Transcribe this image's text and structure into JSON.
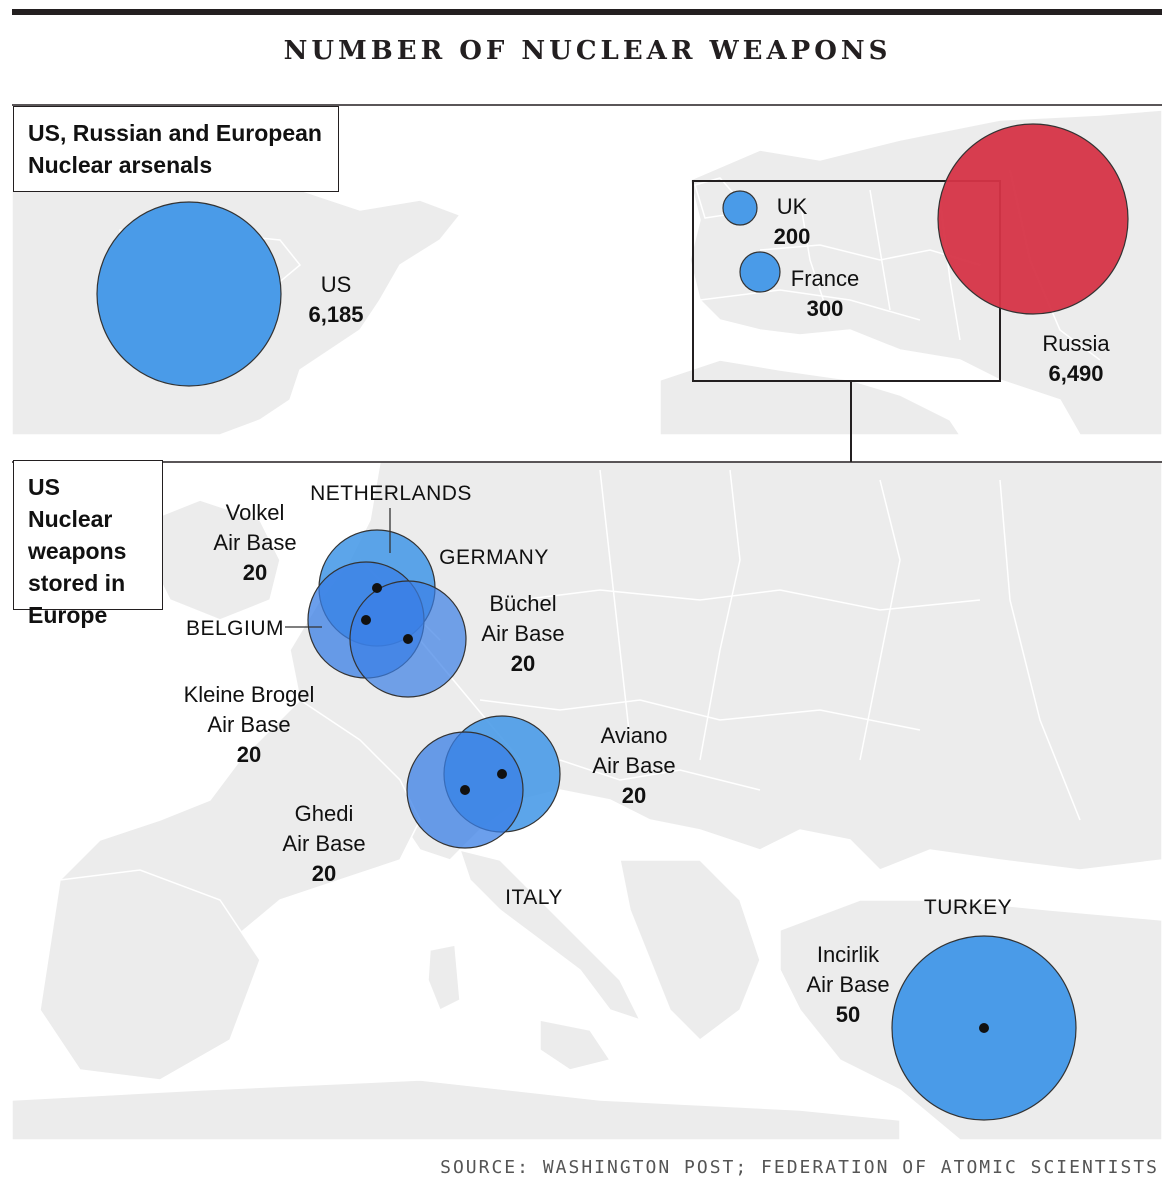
{
  "title": "NUMBER OF NUCLEAR WEAPONS",
  "panels": {
    "arsenals_label": "US, Russian and European\nNuclear arsenals",
    "europe_label": "US Nuclear\nweapons\nstored in\nEurope"
  },
  "arsenals": [
    {
      "name": "US",
      "value": "6,185",
      "color": "#4a9be8"
    },
    {
      "name": "UK",
      "value": "200",
      "color": "#4a9be8"
    },
    {
      "name": "France",
      "value": "300",
      "color": "#4a9be8"
    },
    {
      "name": "Russia",
      "value": "6,490",
      "color": "#d63447"
    }
  ],
  "bases": [
    {
      "line1": "Volkel",
      "line2": "Air Base",
      "value": "20"
    },
    {
      "line1": "Büchel",
      "line2": "Air Base",
      "value": "20"
    },
    {
      "line1": "Kleine Brogel",
      "line2": "Air Base",
      "value": "20"
    },
    {
      "line1": "Aviano",
      "line2": "Air Base",
      "value": "20"
    },
    {
      "line1": "Ghedi",
      "line2": "Air Base",
      "value": "20"
    },
    {
      "line1": "Incirlik",
      "line2": "Air Base",
      "value": "50"
    }
  ],
  "countries": [
    "NETHERLANDS",
    "GERMANY",
    "BELGIUM",
    "ITALY",
    "TURKEY"
  ],
  "colors": {
    "us_blue": "#4a9be8",
    "overlap_blue": "#2556e6",
    "russia_red": "#d63447",
    "land": "#ececec",
    "border": "#ffffff"
  },
  "source": "SOURCE: WASHINGTON POST; FEDERATION OF ATOMIC SCIENTISTS"
}
